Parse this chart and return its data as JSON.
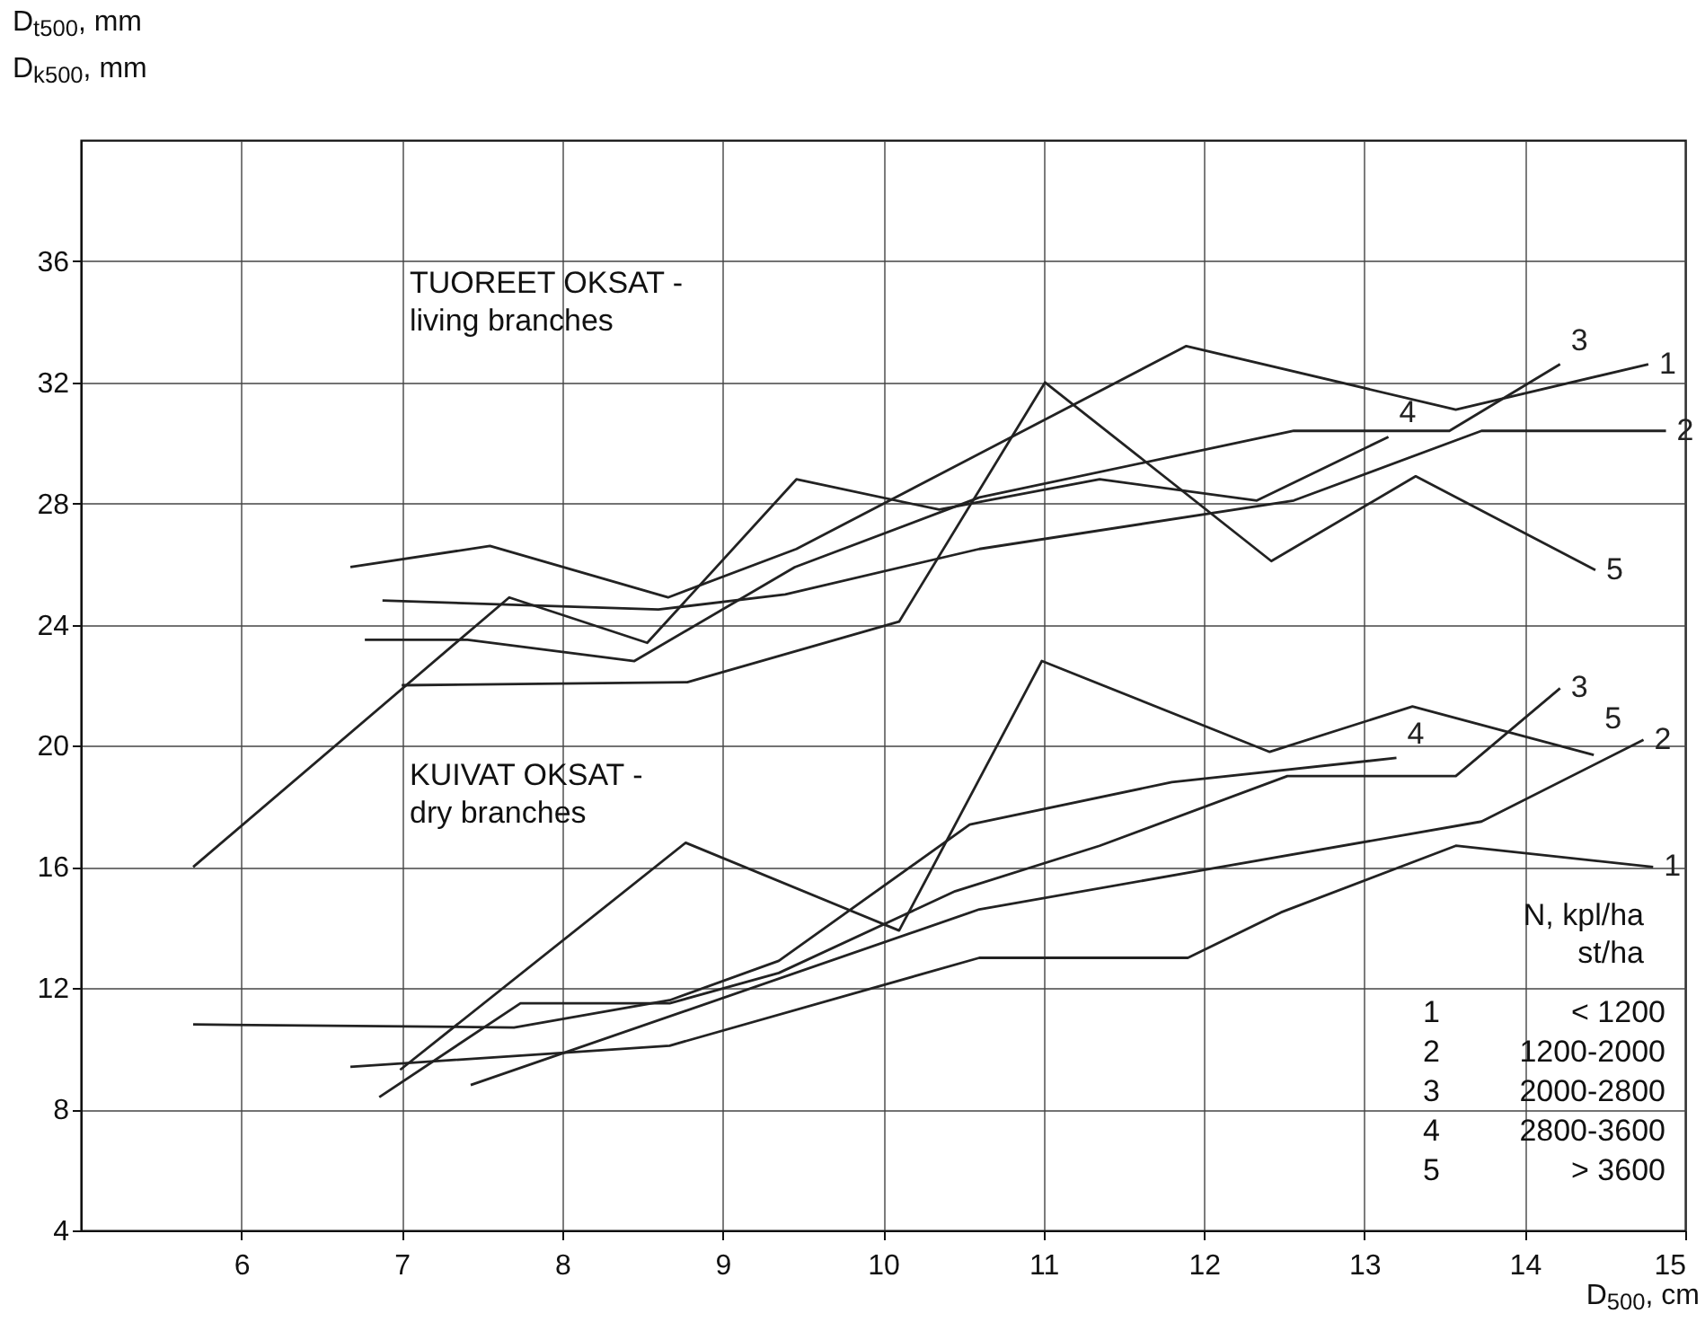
{
  "chart_data": {
    "type": "line",
    "xlabel": "D$_{500}$, cm",
    "ylabel": "D$_{t500}$, mm\nD$_{k500}$, mm",
    "xlim": [
      5,
      15
    ],
    "xticks": [
      6,
      7,
      8,
      9,
      10,
      11,
      12,
      13,
      14,
      15
    ],
    "ylim": [
      4,
      40
    ],
    "yticks": [
      4,
      8,
      12,
      16,
      20,
      24,
      28,
      32,
      36
    ],
    "grid": true,
    "line_style": "solid",
    "marker": "none",
    "annotations": [
      "TUOREET OKSAT  -\nliving branches",
      "KUIVAT OKSAT  -\ndry branches",
      "N, kpl/ha\nst/ha",
      "1\t< 1200",
      "2\t1200-2000",
      "3\t2000-2800",
      "4\t2800-3600",
      "5\t> 3600"
    ],
    "series": [
      {
        "name": "1",
        "color": "#222222",
        "x": [
          6.68,
          7.55,
          8.66,
          9.46,
          11.89,
          13.57,
          14.77
        ],
        "values": [
          25.9,
          26.6,
          24.9,
          26.5,
          33.2,
          31.1,
          32.6
        ]
      },
      {
        "name": "2",
        "color": "#222222",
        "x": [
          6.88,
          8.6,
          9.39,
          10.6,
          12.56,
          13.73,
          14.88
        ],
        "values": [
          24.8,
          24.5,
          25.0,
          26.5,
          28.1,
          30.4,
          30.4
        ]
      },
      {
        "name": "3",
        "color": "#222222",
        "x": [
          6.77,
          7.41,
          8.45,
          9.45,
          10.6,
          12.56,
          13.53,
          14.22
        ],
        "values": [
          23.5,
          23.5,
          22.8,
          25.9,
          28.2,
          30.4,
          30.4,
          32.6
        ]
      },
      {
        "name": "4",
        "color": "#222222",
        "x": [
          5.7,
          7.67,
          8.53,
          9.46,
          10.35,
          11.35,
          12.33,
          13.15
        ],
        "values": [
          16.0,
          24.9,
          23.4,
          28.8,
          27.8,
          28.8,
          28.1,
          30.2
        ]
      },
      {
        "name": "5",
        "color": "#222222",
        "x": [
          7.0,
          8.78,
          10.1,
          11.01,
          12.42,
          13.32,
          14.44
        ],
        "values": [
          22.0,
          22.1,
          24.1,
          32.0,
          26.1,
          28.9,
          25.8
        ]
      },
      {
        "name": "1",
        "color": "#222222",
        "x": [
          6.68,
          8.67,
          10.6,
          11.9,
          12.48,
          13.57,
          14.8
        ],
        "values": [
          9.4,
          10.1,
          13.0,
          13.0,
          14.5,
          16.7,
          16.0
        ]
      },
      {
        "name": "2",
        "color": "#222222",
        "x": [
          7.43,
          10.6,
          12.0,
          13.73,
          14.74
        ],
        "values": [
          8.8,
          14.6,
          15.9,
          17.5,
          20.2
        ]
      },
      {
        "name": "3",
        "color": "#222222",
        "x": [
          6.86,
          7.74,
          8.67,
          9.35,
          10.45,
          11.35,
          12.52,
          13.57,
          14.22
        ],
        "values": [
          8.4,
          11.5,
          11.5,
          12.5,
          15.2,
          16.7,
          19.0,
          19.0,
          21.9
        ]
      },
      {
        "name": "4",
        "color": "#222222",
        "x": [
          5.7,
          7.7,
          8.67,
          9.35,
          10.54,
          11.8,
          13.2
        ],
        "values": [
          10.8,
          10.7,
          11.6,
          12.9,
          17.4,
          18.8,
          19.6
        ]
      },
      {
        "name": "5",
        "color": "#222222",
        "x": [
          6.99,
          8.77,
          10.1,
          10.99,
          12.41,
          13.3,
          14.43
        ],
        "values": [
          9.3,
          16.8,
          13.9,
          22.8,
          19.8,
          21.3,
          19.7
        ]
      }
    ]
  }
}
